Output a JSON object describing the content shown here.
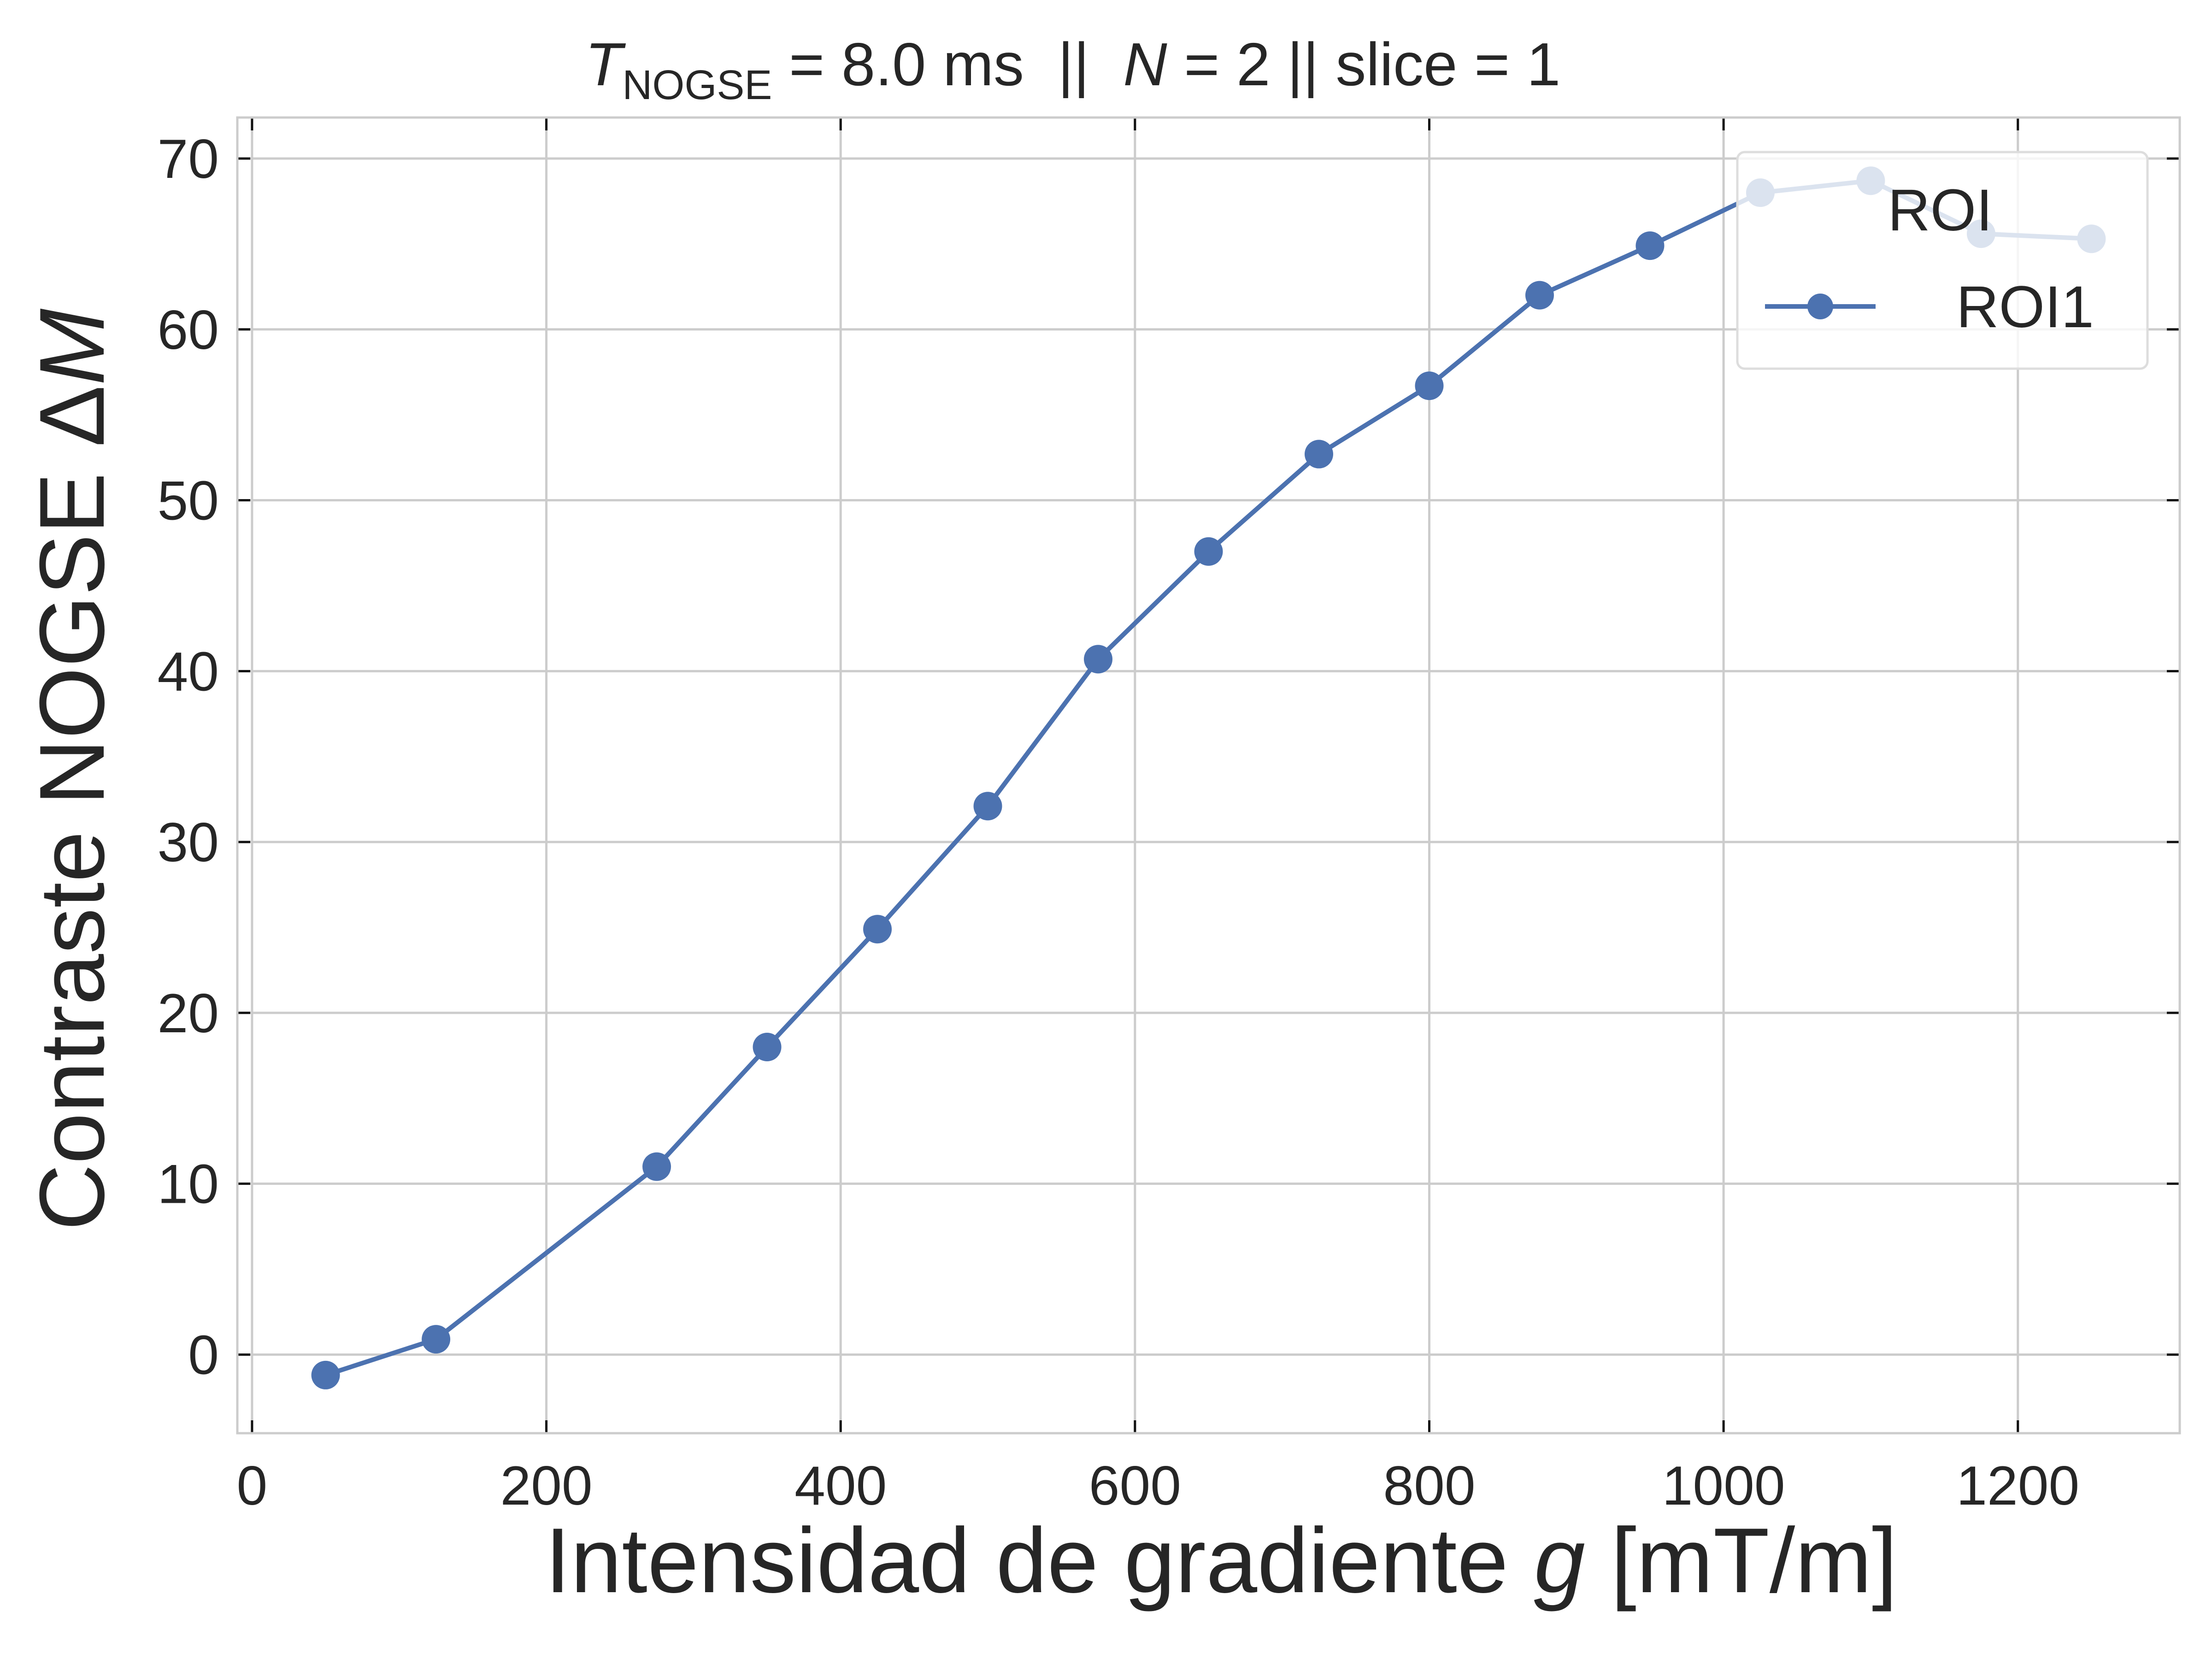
{
  "chart_data": {
    "type": "line",
    "title": {
      "symbol": "T",
      "subscript": "NOGSE",
      "time_value": " = 8.0 ms  ||  ",
      "n_symbol": "N",
      "rest": " = 2 || slice = 1"
    },
    "xlabel": {
      "text": "Intensidad de gradiente ",
      "symbol": "g",
      "unit": " [mT/m]"
    },
    "ylabel": {
      "text": "Contraste NOGSE Δ",
      "symbol": "M"
    },
    "xlim": [
      -10,
      1310
    ],
    "ylim": [
      -4.6,
      72.4
    ],
    "xticks": [
      0,
      200,
      400,
      600,
      800,
      1000,
      1200
    ],
    "yticks": [
      0,
      10,
      20,
      30,
      40,
      50,
      60,
      70
    ],
    "grid": true,
    "legend": {
      "title": "ROI",
      "position": "top-right"
    },
    "series": [
      {
        "name": "ROI1",
        "color": "#4c72b0",
        "marker": "circle",
        "x": [
          50,
          125,
          275,
          350,
          425,
          500,
          575,
          650,
          725,
          800,
          875,
          950,
          1025,
          1100,
          1175,
          1250
        ],
        "y": [
          -1.2,
          0.9,
          11.0,
          18.0,
          24.9,
          32.1,
          40.7,
          47.0,
          52.7,
          56.7,
          62.0,
          64.9,
          68.0,
          68.7,
          65.6,
          65.3
        ]
      }
    ]
  }
}
